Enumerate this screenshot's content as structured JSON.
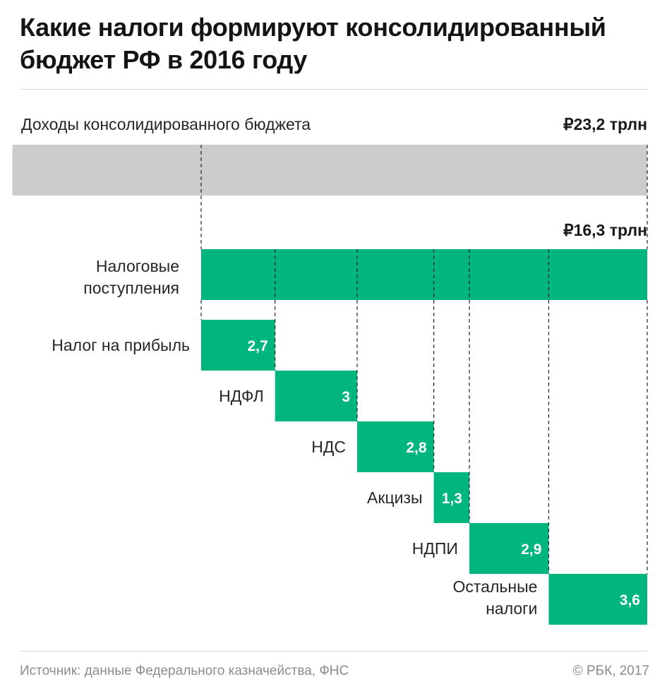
{
  "title": "Какие налоги формируют консолидированный бюджет РФ в 2016 году",
  "colors": {
    "accent": "#00b67e",
    "total_bar": "#cccccc",
    "value_text": "#ffffff"
  },
  "chart_data": {
    "type": "bar",
    "orientation": "horizontal-waterfall",
    "unit": "трлн руб.",
    "total": {
      "label": "Доходы консолидированного бюджета",
      "value": 23.2,
      "value_label": "₽23,2 трлн"
    },
    "subtotal": {
      "label": "Налоговые поступления",
      "value": 16.3,
      "value_label": "₽16,3 трлн"
    },
    "categories": [
      "Налог на прибыль",
      "НДФЛ",
      "НДС",
      "Акцизы",
      "НДПИ",
      "Остальные налоги"
    ],
    "values": [
      2.7,
      3.0,
      2.8,
      1.3,
      2.9,
      3.6
    ],
    "value_labels": [
      "2,7",
      "3",
      "2,8",
      "1,3",
      "2,9",
      "3,6"
    ]
  },
  "footer": {
    "source": "Источник: данные Федерального казначейства, ФНС",
    "copyright": "© РБК, 2017"
  }
}
